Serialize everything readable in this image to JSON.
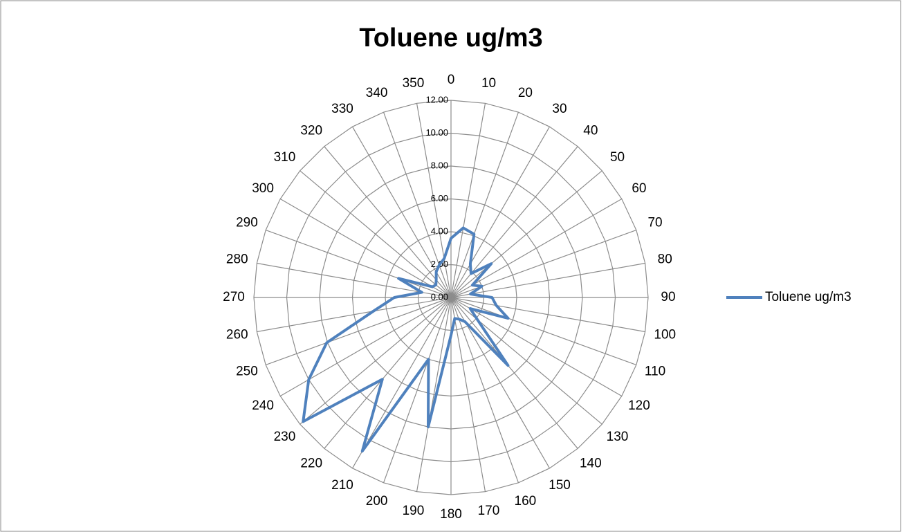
{
  "chart_data": {
    "type": "radar",
    "title": "Toluene ug/m3",
    "categories": [
      "0",
      "10",
      "20",
      "30",
      "40",
      "50",
      "60",
      "70",
      "80",
      "90",
      "100",
      "110",
      "120",
      "130",
      "140",
      "150",
      "160",
      "170",
      "180",
      "190",
      "200",
      "210",
      "220",
      "230",
      "240",
      "250",
      "260",
      "270",
      "280",
      "290",
      "300",
      "310",
      "320",
      "330",
      "340",
      "350"
    ],
    "series": [
      {
        "name": "Toluene ug/m3",
        "color": "#4f81bd",
        "values": [
          3.6,
          4.3,
          4.1,
          2.35,
          1.9,
          3.2,
          1.5,
          2.0,
          1.2,
          2.5,
          2.8,
          3.7,
          1.35,
          2.1,
          5.4,
          1.7,
          1.4,
          1.3,
          2.3,
          8.0,
          4.0,
          10.8,
          6.5,
          11.75,
          10.0,
          8.05,
          4.8,
          3.45,
          1.8,
          3.4,
          1.3,
          1.2,
          1.4,
          1.8,
          2.1,
          2.4
        ]
      }
    ],
    "ylim": [
      0,
      12
    ],
    "yticks": [
      {
        "value": 0,
        "label": "0.00"
      },
      {
        "value": 2,
        "label": "2.00"
      },
      {
        "value": 4,
        "label": "4.00"
      },
      {
        "value": 6,
        "label": "6.00"
      },
      {
        "value": 8,
        "label": "8.00"
      },
      {
        "value": 10,
        "label": "10.00"
      },
      {
        "value": 12,
        "label": "12.00"
      }
    ],
    "grid": true,
    "legend": "right"
  }
}
